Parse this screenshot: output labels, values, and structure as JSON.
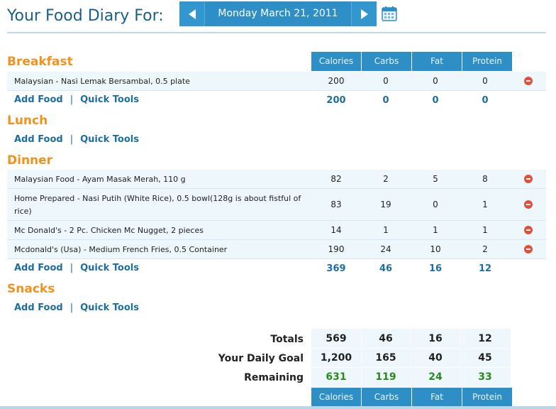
{
  "header": {
    "title": "Your Food Diary For:",
    "date": "Monday March 21, 2011",
    "prev_icon": "arrow-left-icon",
    "next_icon": "arrow-right-icon",
    "calendar_icon": "calendar-icon"
  },
  "columns": [
    "Calories",
    "Carbs",
    "Fat",
    "Protein"
  ],
  "links": {
    "add": "Add Food",
    "sep": "|",
    "quick": "Quick Tools"
  },
  "breakfast": {
    "title": "Breakfast",
    "items": [
      {
        "name": "Malaysian - Nasi Lemak Bersambal, 0.5 plate",
        "cal": "200",
        "carb": "0",
        "fat": "0",
        "pro": "0"
      }
    ],
    "totals": {
      "cal": "200",
      "carb": "0",
      "fat": "0",
      "pro": "0"
    }
  },
  "lunch": {
    "title": "Lunch"
  },
  "dinner": {
    "title": "Dinner",
    "items": [
      {
        "name": "Malaysian Food - Ayam Masak Merah, 110 g",
        "cal": "82",
        "carb": "2",
        "fat": "5",
        "pro": "8"
      },
      {
        "name": "Home Prepared - Nasi Putih (White Rice), 0.5 bowl(128g is about fistful of rice)",
        "cal": "83",
        "carb": "19",
        "fat": "0",
        "pro": "1"
      },
      {
        "name": "Mc Donald's - 2 Pc. Chicken Mc Nugget, 2 pieces",
        "cal": "14",
        "carb": "1",
        "fat": "1",
        "pro": "1"
      },
      {
        "name": "Mcdonald's (Usa) - Medium French Fries, 0.5 Container",
        "cal": "190",
        "carb": "24",
        "fat": "10",
        "pro": "2"
      }
    ],
    "totals": {
      "cal": "369",
      "carb": "46",
      "fat": "16",
      "pro": "12"
    }
  },
  "snacks": {
    "title": "Snacks"
  },
  "summary": {
    "totals": {
      "label": "Totals",
      "cal": "569",
      "carb": "46",
      "fat": "16",
      "pro": "12"
    },
    "goal": {
      "label": "Your Daily Goal",
      "cal": "1,200",
      "carb": "165",
      "fat": "40",
      "pro": "45"
    },
    "remaining": {
      "label": "Remaining",
      "cal": "631",
      "carb": "119",
      "fat": "24",
      "pro": "33"
    }
  },
  "colors": {
    "accent": "#2e8fc6",
    "section": "#f0921e",
    "remaining": "#2a8a1f"
  }
}
